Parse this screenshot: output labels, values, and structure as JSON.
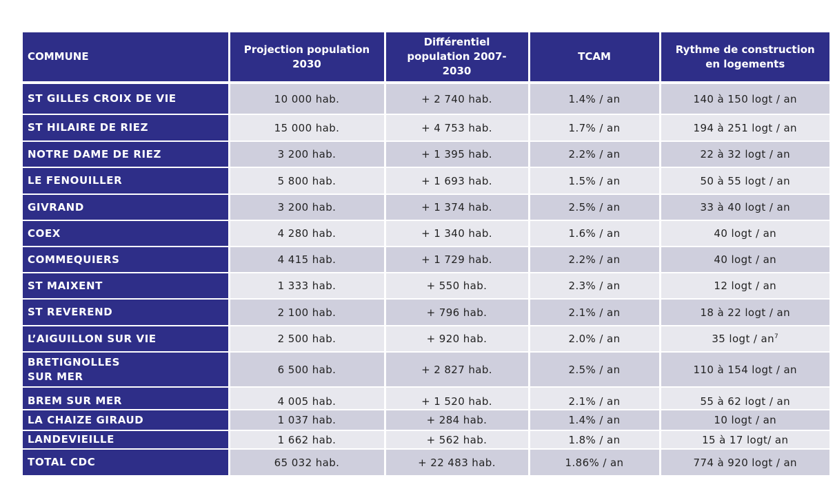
{
  "headers": {
    "commune": "COMMUNE",
    "projection": "Projection population 2030",
    "differentiel": "Différentiel population 2007-2030",
    "tcam": "TCAM",
    "rythme": "Rythme de construction en logements"
  },
  "rows": [
    {
      "commune": "ST GILLES CROIX DE VIE",
      "projection": "10 000 hab.",
      "differentiel": "+ 2 740 hab.",
      "tcam": "1.4% / an",
      "rythme": "140 à 150 logt / an"
    },
    {
      "commune": "ST HILAIRE DE RIEZ",
      "projection": "15 000 hab.",
      "differentiel": "+ 4 753 hab.",
      "tcam": "1.7% / an",
      "rythme": "194 à 251 logt / an"
    },
    {
      "commune": "NOTRE DAME DE RIEZ",
      "projection": "3 200 hab.",
      "differentiel": "+ 1 395 hab.",
      "tcam": "2.2% / an",
      "rythme": "22 à 32 logt / an"
    },
    {
      "commune": "LE FENOUILLER",
      "projection": "5 800 hab.",
      "differentiel": "+ 1 693 hab.",
      "tcam": "1.5% / an",
      "rythme": "50 à 55 logt / an"
    },
    {
      "commune": "GIVRAND",
      "projection": "3 200 hab.",
      "differentiel": "+ 1 374 hab.",
      "tcam": "2.5% / an",
      "rythme": "33 à 40 logt / an"
    },
    {
      "commune": "COEX",
      "projection": "4 280 hab.",
      "differentiel": "+ 1 340 hab.",
      "tcam": "1.6% / an",
      "rythme": "40 logt / an"
    },
    {
      "commune": "COMMEQUIERS",
      "projection": "4 415 hab.",
      "differentiel": "+ 1 729 hab.",
      "tcam": "2.2% / an",
      "rythme": "40 logt / an"
    },
    {
      "commune": "ST MAIXENT",
      "projection": "1 333 hab.",
      "differentiel": "+ 550 hab.",
      "tcam": "2.3% / an",
      "rythme": "12 logt / an"
    },
    {
      "commune": "ST REVEREND",
      "projection": "2 100 hab.",
      "differentiel": "+ 796 hab.",
      "tcam": "2.1% / an",
      "rythme": "18 à 22 logt / an"
    },
    {
      "commune": "L’AIGUILLON SUR VIE",
      "projection": "2 500 hab.",
      "differentiel": "+ 920 hab.",
      "tcam": "2.0% / an",
      "rythme": "35 logt / an",
      "rythme_note": "7"
    },
    {
      "commune": "BRETIGNOLLES SUR MER",
      "projection": "6 500 hab.",
      "differentiel": "+ 2 827 hab.",
      "tcam": "2.5% / an",
      "rythme": "110 à 154 logt / an"
    },
    {
      "commune": "BREM SUR MER",
      "projection": "4 005 hab.",
      "differentiel": "+ 1 520 hab.",
      "tcam": "2.1% / an",
      "rythme": "55 à 62 logt / an"
    },
    {
      "commune": "LA CHAIZE GIRAUD",
      "projection": "1 037 hab.",
      "differentiel": "+ 284 hab.",
      "tcam": "1.4% / an",
      "rythme": "10 logt / an"
    },
    {
      "commune": "LANDEVIEILLE",
      "projection": "1 662 hab.",
      "differentiel": "+ 562 hab.",
      "tcam": "1.8% / an",
      "rythme": "15 à 17 logt/ an"
    },
    {
      "commune": "TOTAL CDC",
      "projection": "65 032 hab.",
      "differentiel": "+ 22 483 hab.",
      "tcam": "1.86% / an",
      "rythme": "774 à 920 logt / an"
    }
  ]
}
